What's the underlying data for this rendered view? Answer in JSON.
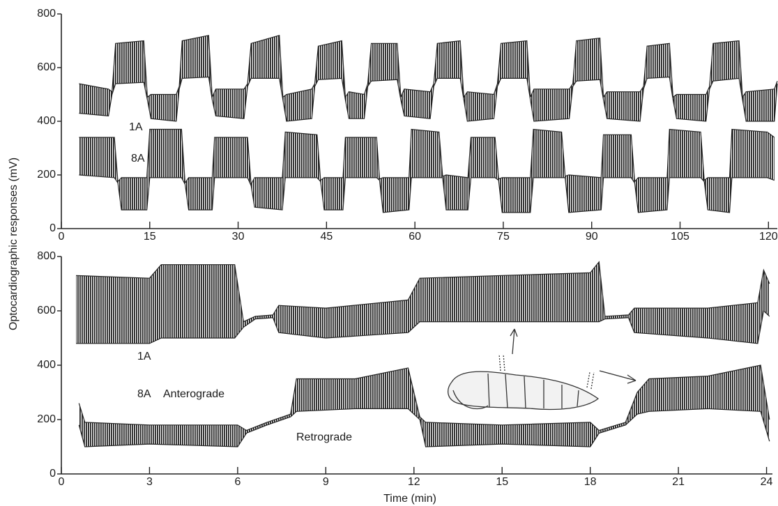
{
  "chart_data": [
    {
      "type": "band",
      "ylabel": "Optocardiographic responses (mV)",
      "xlim": [
        0,
        121.5
      ],
      "ylim": [
        0,
        800
      ],
      "xticks": [
        0,
        15,
        30,
        45,
        60,
        75,
        90,
        105,
        120
      ],
      "yticks": [
        0,
        200,
        400,
        600,
        800
      ],
      "annotations": [],
      "series": [
        {
          "name": "1A",
          "color": "#222222",
          "x": [
            3,
            8,
            8.6,
            9.2,
            14,
            14.6,
            15.2,
            19.5,
            20,
            20.5,
            25,
            25.6,
            26.2,
            31,
            31.6,
            32.2,
            37,
            37.6,
            38.2,
            42.5,
            43,
            43.6,
            47.6,
            48.2,
            48.8,
            51.4,
            52,
            52.6,
            57,
            57.6,
            58.2,
            62.6,
            63.2,
            63.8,
            67.7,
            68.3,
            68.9,
            73.4,
            74,
            74.6,
            79,
            79.6,
            80.2,
            86.2,
            86.8,
            87.4,
            91.4,
            92,
            92.6,
            98.2,
            98.8,
            99.4,
            103.2,
            103.8,
            104.4,
            109.4,
            110,
            110.6,
            115,
            115.6,
            116.2,
            121,
            121.5
          ],
          "low": [
            430,
            420,
            500,
            540,
            545,
            480,
            410,
            400,
            520,
            560,
            565,
            480,
            420,
            410,
            530,
            560,
            560,
            480,
            400,
            410,
            530,
            555,
            560,
            480,
            410,
            410,
            530,
            550,
            555,
            480,
            420,
            410,
            530,
            560,
            560,
            480,
            400,
            410,
            530,
            560,
            560,
            480,
            400,
            410,
            530,
            550,
            555,
            480,
            410,
            400,
            520,
            560,
            565,
            480,
            410,
            400,
            520,
            550,
            560,
            480,
            400,
            400,
            540
          ],
          "high": [
            540,
            520,
            510,
            690,
            700,
            490,
            500,
            500,
            530,
            700,
            720,
            490,
            520,
            520,
            540,
            690,
            720,
            490,
            500,
            520,
            540,
            680,
            700,
            490,
            510,
            500,
            540,
            690,
            690,
            490,
            520,
            510,
            540,
            690,
            700,
            490,
            510,
            500,
            540,
            690,
            700,
            490,
            520,
            520,
            540,
            700,
            710,
            490,
            510,
            510,
            530,
            680,
            690,
            490,
            500,
            500,
            530,
            690,
            700,
            490,
            510,
            520,
            550
          ]
        },
        {
          "name": "8A",
          "color": "#222222",
          "x": [
            3,
            9,
            9.6,
            10.2,
            14.5,
            15,
            20.4,
            21,
            21.6,
            25.6,
            26,
            31.6,
            32.2,
            32.8,
            37.5,
            38,
            43.4,
            44,
            44.6,
            47.8,
            48.2,
            53.5,
            54,
            54.6,
            59,
            59.4,
            64.1,
            64.7,
            65.3,
            69,
            69.5,
            73.6,
            74.2,
            74.8,
            79.6,
            80.1,
            84.9,
            85.5,
            86.1,
            91.6,
            92,
            96.7,
            97.3,
            97.9,
            102.8,
            103.2,
            108.5,
            109.1,
            109.7,
            113.4,
            113.8,
            119.8,
            121
          ],
          "low": [
            200,
            190,
            170,
            70,
            70,
            190,
            190,
            165,
            70,
            70,
            190,
            190,
            160,
            80,
            70,
            190,
            190,
            175,
            70,
            70,
            190,
            190,
            180,
            60,
            70,
            190,
            190,
            190,
            70,
            70,
            190,
            190,
            180,
            60,
            60,
            190,
            190,
            190,
            60,
            70,
            190,
            190,
            170,
            60,
            70,
            190,
            190,
            175,
            70,
            60,
            190,
            190,
            180
          ],
          "high": [
            340,
            340,
            175,
            190,
            190,
            370,
            370,
            170,
            190,
            190,
            340,
            340,
            165,
            190,
            190,
            360,
            350,
            180,
            190,
            190,
            340,
            340,
            185,
            190,
            190,
            370,
            360,
            195,
            200,
            190,
            340,
            340,
            185,
            190,
            190,
            370,
            360,
            195,
            200,
            190,
            350,
            350,
            175,
            190,
            190,
            370,
            360,
            180,
            190,
            190,
            370,
            360,
            340
          ]
        }
      ]
    },
    {
      "type": "band",
      "xlabel": "Time (min)",
      "xlim": [
        0,
        24.2
      ],
      "ylim": [
        0,
        800
      ],
      "xticks": [
        0,
        3,
        6,
        9,
        12,
        15,
        18,
        21,
        24
      ],
      "yticks": [
        0,
        200,
        400,
        600,
        800
      ],
      "annotations": [
        "Anterograde",
        "Retrograde"
      ],
      "series": [
        {
          "name": "1A",
          "color": "#222222",
          "x": [
            0.5,
            3,
            3.4,
            5.9,
            6.2,
            6.6,
            7.2,
            7.4,
            9,
            11.8,
            12.2,
            15,
            18,
            18.3,
            18.5,
            19.3,
            19.5,
            22,
            23.7,
            23.9,
            24.1
          ],
          "low": [
            480,
            480,
            500,
            500,
            540,
            570,
            575,
            520,
            500,
            520,
            560,
            560,
            560,
            560,
            570,
            575,
            520,
            500,
            480,
            600,
            580
          ],
          "high": [
            730,
            720,
            770,
            770,
            560,
            580,
            585,
            620,
            610,
            640,
            720,
            730,
            740,
            780,
            580,
            585,
            610,
            610,
            630,
            750,
            700
          ]
        },
        {
          "name": "8A",
          "color": "#222222",
          "x": [
            0.6,
            0.8,
            3,
            6,
            6.3,
            7,
            7.8,
            8,
            10,
            11.8,
            12.2,
            12.4,
            15,
            18,
            18.3,
            19.2,
            19.6,
            20,
            22,
            23.8,
            24.1
          ],
          "low": [
            180,
            100,
            110,
            100,
            150,
            180,
            210,
            230,
            240,
            240,
            200,
            100,
            110,
            100,
            150,
            180,
            220,
            230,
            240,
            230,
            120
          ],
          "high": [
            260,
            190,
            180,
            180,
            160,
            190,
            220,
            350,
            350,
            390,
            210,
            190,
            180,
            190,
            160,
            190,
            300,
            350,
            360,
            400,
            200
          ]
        }
      ]
    }
  ]
}
